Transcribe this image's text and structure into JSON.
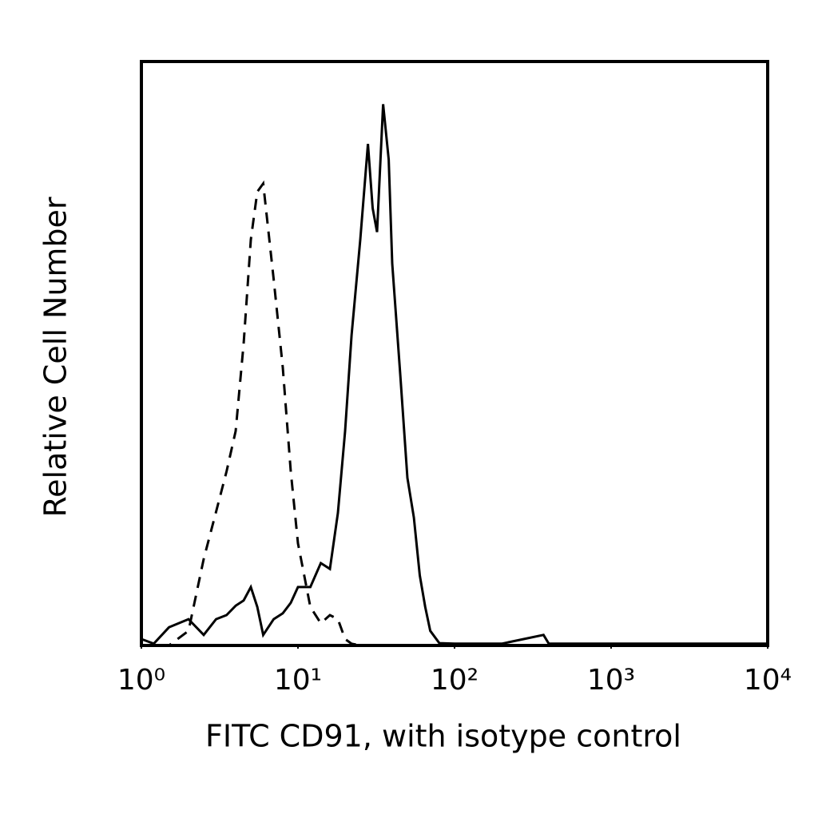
{
  "chart_data": {
    "type": "line",
    "xlabel": "FITC CD91, with isotype control",
    "ylabel": "Relative Cell Number",
    "xscale": "log",
    "xlim": [
      1,
      10000
    ],
    "xticks": [
      {
        "value": 1,
        "label": "10⁰"
      },
      {
        "value": 10,
        "label": "10¹"
      },
      {
        "value": 100,
        "label": "10²"
      },
      {
        "value": 1000,
        "label": "10³"
      },
      {
        "value": 10000,
        "label": "10⁴"
      }
    ],
    "ylim": [
      0,
      100
    ],
    "x": [
      1,
      1.2,
      1.5,
      2,
      2.5,
      3,
      3.5,
      4,
      4.5,
      5,
      5.5,
      6,
      7,
      8,
      9,
      10,
      12,
      14,
      16,
      18,
      20,
      22,
      25,
      28,
      30,
      32,
      35,
      38,
      40,
      45,
      50,
      55,
      60,
      65,
      70,
      80,
      100,
      200,
      370,
      400,
      450,
      500,
      1000,
      10000
    ],
    "series": [
      {
        "color": "#000000",
        "line_style": "solid",
        "values": [
          1.1,
          0.3,
          3.1,
          4.5,
          1.8,
          4.5,
          5.2,
          6.8,
          7.7,
          10.0,
          6.6,
          1.8,
          4.5,
          5.5,
          7.3,
          10.0,
          10.0,
          14.1,
          13.1,
          22.7,
          36.7,
          53.1,
          69.5,
          85.9,
          74.9,
          70.8,
          92.7,
          83.2,
          65.4,
          46.5,
          28.7,
          21.9,
          12.0,
          6.6,
          2.5,
          0.4,
          0.3,
          0.3,
          1.8,
          0.3,
          0.3,
          0.3,
          0.3,
          0.3
        ]
      },
      {
        "color": "#000000",
        "line_style": "dashed",
        "values": [
          0,
          0,
          0,
          2.5,
          14.8,
          22.9,
          29.8,
          36.7,
          51.7,
          69.5,
          77.7,
          79.1,
          62.7,
          47.6,
          29.8,
          17.5,
          6.6,
          3.8,
          5.2,
          4.5,
          1.1,
          0.3,
          0,
          0,
          0,
          0,
          0,
          0,
          0,
          0,
          0,
          0,
          0,
          0,
          0,
          0,
          0,
          0,
          0,
          0,
          0,
          0,
          0,
          0
        ]
      }
    ]
  }
}
